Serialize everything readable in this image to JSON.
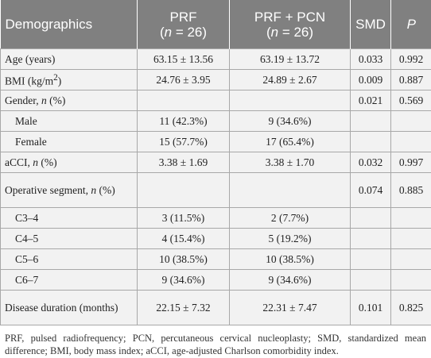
{
  "header": {
    "demographics": "Demographics",
    "prf": "PRF",
    "prf_n": [
      "(",
      "n",
      " = 26)"
    ],
    "prf_pcn": "PRF + PCN",
    "prf_pcn_n": [
      "(",
      "n",
      " = 26)"
    ],
    "smd": "SMD",
    "p": "P"
  },
  "rows": [
    {
      "label": "Age (years)",
      "prf": "63.15 ± 13.56",
      "prf_pcn": "63.19 ± 13.72",
      "smd": "0.033",
      "p": "0.992"
    },
    {
      "label": [
        "BMI (kg/m",
        "2",
        ")"
      ],
      "prf": "24.76 ± 3.95",
      "prf_pcn": "24.89 ± 2.67",
      "smd": "0.009",
      "p": "0.887"
    },
    {
      "label": [
        "Gender, ",
        "n",
        " (%)"
      ],
      "smd": "0.021",
      "p": "0.569"
    },
    {
      "label": "Male",
      "prf": "11 (42.3%)",
      "prf_pcn": "9 (34.6%)"
    },
    {
      "label": "Female",
      "prf": "15 (57.7%)",
      "prf_pcn": "17 (65.4%)"
    },
    {
      "label": [
        "aCCI, ",
        "n",
        " (%)"
      ],
      "prf": "3.38 ± 1.69",
      "prf_pcn": "3.38 ± 1.70",
      "smd": "0.032",
      "p": "0.997"
    },
    {
      "label": [
        "Operative segment, ",
        "n",
        " (%)"
      ],
      "smd": "0.074",
      "p": "0.885"
    },
    {
      "label": "C3–4",
      "prf": "3 (11.5%)",
      "prf_pcn": "2 (7.7%)"
    },
    {
      "label": "C4–5",
      "prf": "4 (15.4%)",
      "prf_pcn": "5 (19.2%)"
    },
    {
      "label": "C5–6",
      "prf": "10 (38.5%)",
      "prf_pcn": "10 (38.5%)"
    },
    {
      "label": "C6–7",
      "prf": "9 (34.6%)",
      "prf_pcn": "9 (34.6%)"
    },
    {
      "label": "Disease duration (months)",
      "prf": "22.15 ± 7.32",
      "prf_pcn": "22.31 ± 7.47",
      "smd": "0.101",
      "p": "0.825"
    }
  ],
  "footnote": "PRF, pulsed radiofrequency; PCN, percutaneous cervical nucleoplasty; SMD, standardized mean difference; BMI, body mass index; aCCI, age-adjusted Charlson comorbidity index."
}
